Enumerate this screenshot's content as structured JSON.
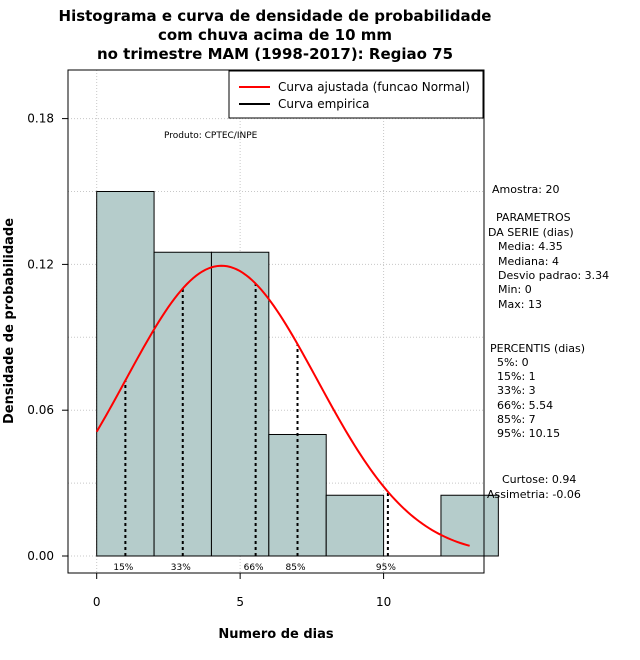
{
  "chart_data": {
    "type": "bar",
    "title_lines": [
      "Histograma e curva de densidade de probabilidade",
      "com chuva acima de 10 mm",
      "no trimestre MAM (1998-2017): Regiao 75"
    ],
    "xlabel": "Numero de dias",
    "ylabel": "Densidade de probabilidade",
    "xlim": [
      -1,
      13.5
    ],
    "ylim": [
      -0.007,
      0.2
    ],
    "x_ticks": [
      0,
      5,
      10
    ],
    "y_ticks": [
      0.0,
      0.06,
      0.12,
      0.18
    ],
    "y_tick_labels": [
      "0.00",
      "0.06",
      "0.12",
      "0.18"
    ],
    "grid": true,
    "bins": [
      {
        "start": 0,
        "end": 2,
        "density": 0.15
      },
      {
        "start": 2,
        "end": 4,
        "density": 0.125
      },
      {
        "start": 4,
        "end": 6,
        "density": 0.125
      },
      {
        "start": 6,
        "end": 8,
        "density": 0.05
      },
      {
        "start": 8,
        "end": 10,
        "density": 0.025
      },
      {
        "start": 10,
        "end": 12,
        "density": 0
      },
      {
        "start": 12,
        "end": 14,
        "density": 0.025
      }
    ],
    "fitted_curve": {
      "name": "Curva ajustada (funcao Normal)",
      "mean": 4.35,
      "sd": 3.34,
      "x_from": 0,
      "x_to": 13,
      "color": "#ff0000"
    },
    "empirical_legend": {
      "name": "Curva empirica",
      "color": "#000000"
    },
    "percentile_lines": [
      {
        "label": "15%",
        "x": 1
      },
      {
        "label": "33%",
        "x": 3
      },
      {
        "label": "66%",
        "x": 5.54
      },
      {
        "label": "85%",
        "x": 7
      },
      {
        "label": "95%",
        "x": 10.15
      }
    ],
    "legend_position": "top-right",
    "bar_color": "#b5cccb"
  },
  "credit": "Produto: CPTEC/INPE",
  "stats": {
    "amostra": "Amostra: 20",
    "param_header_1": "PARAMETROS",
    "param_header_2": "DA SERIE (dias)",
    "params": [
      "Media: 4.35",
      "Mediana: 4",
      "Desvio padrao: 3.34",
      "Min: 0",
      "Max: 13"
    ],
    "perc_header": "PERCENTIS (dias)",
    "percentis": [
      "5%: 0",
      "15%: 1",
      "33%: 3",
      "66%: 5.54",
      "85%: 7",
      "95%: 10.15"
    ],
    "curtose": "Curtose: 0.94",
    "assimetria": "Assimetria: -0.06"
  }
}
